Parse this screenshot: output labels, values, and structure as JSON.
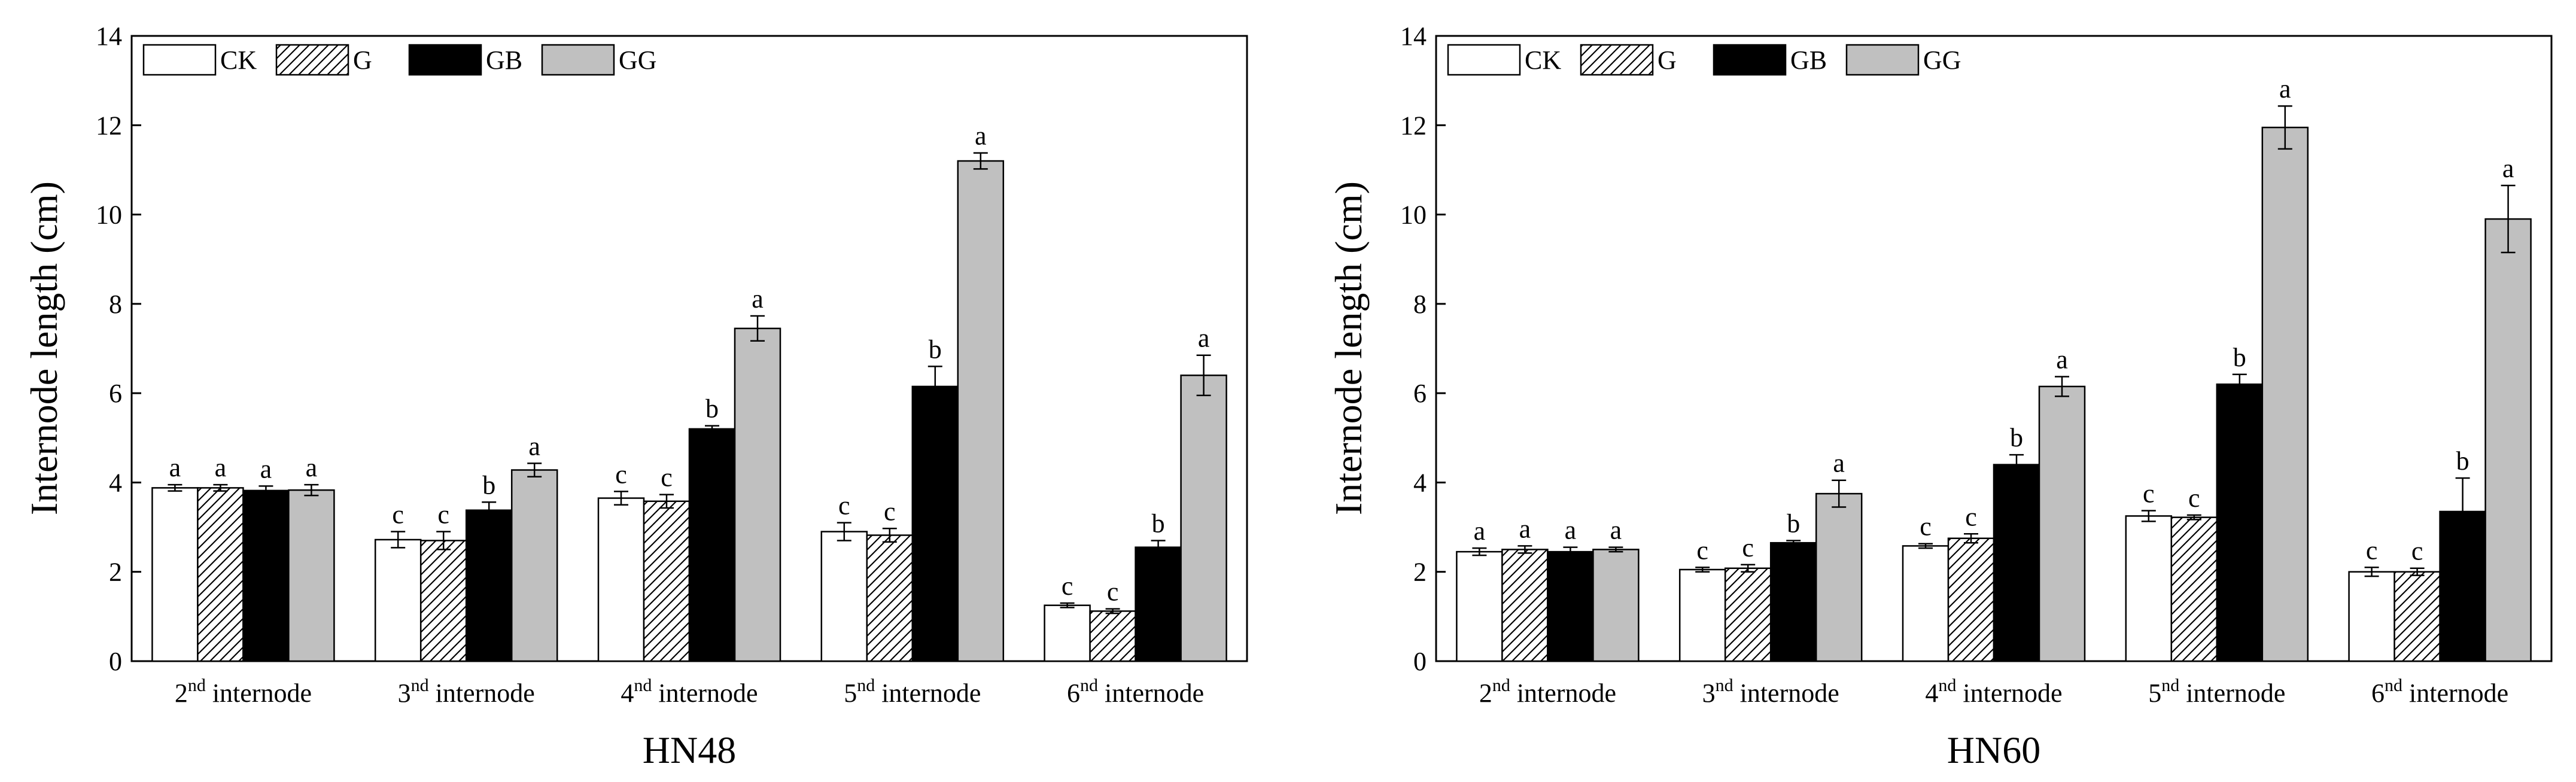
{
  "chart_data": [
    {
      "type": "bar",
      "title": "HN48",
      "xlabel": "",
      "ylabel": "Internode length (cm)",
      "ylim": [
        0,
        14
      ],
      "yticks": [
        0,
        2,
        4,
        6,
        8,
        10,
        12,
        14
      ],
      "categories": [
        {
          "num": "2",
          "sup": "nd",
          "rest": " internode"
        },
        {
          "num": "3",
          "sup": "nd",
          "rest": " internode"
        },
        {
          "num": "4",
          "sup": "nd",
          "rest": " internode"
        },
        {
          "num": "5",
          "sup": "nd",
          "rest": " internode"
        },
        {
          "num": "6",
          "sup": "nd",
          "rest": " internode"
        }
      ],
      "series": [
        {
          "name": "CK",
          "values": [
            3.88,
            2.72,
            3.65,
            2.9,
            1.25
          ],
          "errors": [
            0.07,
            0.18,
            0.15,
            0.2,
            0.05
          ],
          "letters": [
            "a",
            "c",
            "c",
            "c",
            "c"
          ]
        },
        {
          "name": "G",
          "values": [
            3.88,
            2.7,
            3.58,
            2.82,
            1.12
          ],
          "errors": [
            0.07,
            0.2,
            0.15,
            0.15,
            0.05
          ],
          "letters": [
            "a",
            "c",
            "c",
            "c",
            "c"
          ]
        },
        {
          "name": "GB",
          "values": [
            3.82,
            3.38,
            5.2,
            6.15,
            2.55
          ],
          "errors": [
            0.1,
            0.18,
            0.07,
            0.45,
            0.15
          ],
          "letters": [
            "a",
            "b",
            "b",
            "b",
            "b"
          ]
        },
        {
          "name": "GG",
          "values": [
            3.83,
            4.28,
            7.45,
            11.2,
            6.4
          ],
          "errors": [
            0.12,
            0.15,
            0.28,
            0.18,
            0.45
          ],
          "letters": [
            "a",
            "a",
            "a",
            "a",
            "a"
          ]
        }
      ],
      "legend_position": "top-left"
    },
    {
      "type": "bar",
      "title": "HN60",
      "xlabel": "",
      "ylabel": "Internode length (cm)",
      "ylim": [
        0,
        14
      ],
      "yticks": [
        0,
        2,
        4,
        6,
        8,
        10,
        12,
        14
      ],
      "categories": [
        {
          "num": "2",
          "sup": "nd",
          "rest": " internode"
        },
        {
          "num": "3",
          "sup": "nd",
          "rest": " internode"
        },
        {
          "num": "4",
          "sup": "nd",
          "rest": " internode"
        },
        {
          "num": "5",
          "sup": "nd",
          "rest": " internode"
        },
        {
          "num": "6",
          "sup": "nd",
          "rest": " internode"
        }
      ],
      "series": [
        {
          "name": "CK",
          "values": [
            2.45,
            2.05,
            2.58,
            3.25,
            2.0
          ],
          "errors": [
            0.08,
            0.05,
            0.05,
            0.12,
            0.1
          ],
          "letters": [
            "a",
            "c",
            "c",
            "c",
            "c"
          ]
        },
        {
          "name": "G",
          "values": [
            2.5,
            2.08,
            2.75,
            3.22,
            2.0
          ],
          "errors": [
            0.08,
            0.08,
            0.1,
            0.05,
            0.08
          ],
          "letters": [
            "a",
            "c",
            "c",
            "c",
            "c"
          ]
        },
        {
          "name": "GB",
          "values": [
            2.45,
            2.65,
            4.4,
            6.2,
            3.35
          ],
          "errors": [
            0.1,
            0.05,
            0.22,
            0.22,
            0.75
          ],
          "letters": [
            "a",
            "b",
            "b",
            "b",
            "b"
          ]
        },
        {
          "name": "GG",
          "values": [
            2.5,
            3.75,
            6.15,
            11.95,
            9.9
          ],
          "errors": [
            0.05,
            0.3,
            0.22,
            0.48,
            0.75
          ],
          "letters": [
            "a",
            "a",
            "a",
            "a",
            "a"
          ]
        }
      ],
      "legend_position": "top-left"
    }
  ],
  "colors": {
    "CK": "#ffffff",
    "G": "hatch",
    "GB": "#000000",
    "GG": "#c0c0c0",
    "axis": "#000000"
  }
}
